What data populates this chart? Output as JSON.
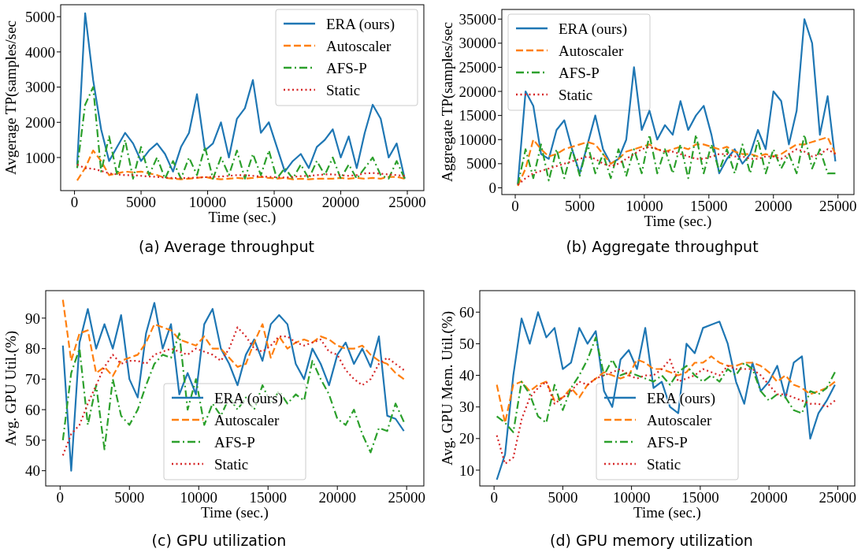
{
  "chart_data": [
    {
      "type": "line",
      "title": "(a) Average throughput",
      "xlabel": "Time (sec.)",
      "ylabel": "Avgerage TP(samples/sec",
      "xlim": [
        -1040,
        26240
      ],
      "ylim": [
        60,
        5340
      ],
      "xticks": [
        0,
        5000,
        10000,
        15000,
        20000,
        25000
      ],
      "yticks": [
        1000,
        2000,
        3000,
        4000,
        5000
      ],
      "legend": "top right",
      "grid": false,
      "x": [
        200,
        800,
        1400,
        2000,
        2600,
        3200,
        3800,
        4400,
        5000,
        5600,
        6200,
        6800,
        7400,
        8000,
        8600,
        9200,
        9800,
        10400,
        11000,
        11600,
        12200,
        12800,
        13400,
        14000,
        14600,
        15200,
        15800,
        16400,
        17000,
        17600,
        18200,
        18800,
        19400,
        20000,
        20600,
        21200,
        21800,
        22400,
        23000,
        23600,
        24200,
        24800
      ],
      "series": [
        {
          "name": "ERA (ours)",
          "color": "#1f77b4",
          "line_style": "solid",
          "values": [
            800,
            5100,
            3200,
            1800,
            900,
            1300,
            1700,
            1400,
            900,
            1200,
            1400,
            1100,
            600,
            1300,
            1700,
            2800,
            1200,
            1400,
            2000,
            1000,
            2100,
            2400,
            3200,
            1700,
            2000,
            1300,
            600,
            900,
            1100,
            700,
            1300,
            1500,
            1800,
            1000,
            1600,
            700,
            1700,
            2500,
            2100,
            1000,
            1400,
            400
          ]
        },
        {
          "name": "Autoscaler",
          "color": "#ff7f0e",
          "line_style": "dashed",
          "values": [
            350,
            700,
            1200,
            900,
            500,
            550,
            600,
            580,
            600,
            550,
            500,
            420,
            400,
            380,
            400,
            420,
            450,
            400,
            380,
            400,
            420,
            400,
            420,
            450,
            420,
            400,
            420,
            380,
            400,
            380,
            400,
            400,
            400,
            420,
            400,
            420,
            400,
            420,
            400,
            450,
            450,
            400
          ]
        },
        {
          "name": "AFS-P",
          "color": "#2ca02c",
          "line_style": "dashdot",
          "values": [
            700,
            2500,
            3000,
            600,
            1600,
            500,
            1500,
            400,
            1300,
            500,
            1000,
            400,
            900,
            400,
            1000,
            500,
            1300,
            400,
            1000,
            500,
            1200,
            400,
            1100,
            500,
            1200,
            400,
            700,
            400,
            800,
            400,
            900,
            500,
            1000,
            400,
            800,
            400,
            700,
            1000,
            500,
            400,
            900,
            400
          ]
        },
        {
          "name": "Static",
          "color": "#d62728",
          "line_style": "dotted",
          "values": [
            800,
            700,
            680,
            620,
            550,
            520,
            500,
            500,
            480,
            460,
            450,
            430,
            420,
            410,
            420,
            430,
            440,
            450,
            460,
            480,
            500,
            500,
            480,
            460,
            450,
            440,
            430,
            450,
            470,
            480,
            500,
            520,
            520,
            500,
            480,
            500,
            550,
            560,
            540,
            520,
            500,
            480
          ]
        }
      ]
    },
    {
      "type": "line",
      "title": "(b) Aggregate throughput",
      "xlabel": "Time (sec.)",
      "ylabel": "Aggregate TP(samples/sec",
      "xlim": [
        -1040,
        26240
      ],
      "ylim": [
        -1400,
        37000
      ],
      "xticks": [
        0,
        5000,
        10000,
        15000,
        20000,
        25000
      ],
      "yticks": [
        0,
        5000,
        10000,
        15000,
        20000,
        25000,
        30000,
        35000
      ],
      "legend": "top left",
      "grid": false,
      "x": [
        200,
        800,
        1400,
        2000,
        2600,
        3200,
        3800,
        4400,
        5000,
        5600,
        6200,
        6800,
        7400,
        8000,
        8600,
        9200,
        9800,
        10400,
        11000,
        11600,
        12200,
        12800,
        13400,
        14000,
        14600,
        15200,
        15800,
        16400,
        17000,
        17600,
        18200,
        18800,
        19400,
        20000,
        20600,
        21200,
        21800,
        22400,
        23000,
        23600,
        24200,
        24800
      ],
      "series": [
        {
          "name": "ERA (ours)",
          "color": "#1f77b4",
          "line_style": "solid",
          "values": [
            800,
            20000,
            17000,
            7000,
            6000,
            12000,
            14000,
            8000,
            3000,
            9000,
            15000,
            8000,
            5000,
            6000,
            10000,
            25000,
            12000,
            16000,
            10000,
            13000,
            11000,
            18000,
            12000,
            15000,
            17000,
            11000,
            3000,
            6000,
            8000,
            5000,
            7000,
            12000,
            8000,
            20000,
            18000,
            9000,
            16000,
            35000,
            30000,
            11000,
            19000,
            5500
          ]
        },
        {
          "name": "Autoscaler",
          "color": "#ff7f0e",
          "line_style": "dashed",
          "values": [
            400,
            4000,
            10000,
            8000,
            6500,
            7000,
            8000,
            8500,
            9000,
            9500,
            9000,
            7000,
            5000,
            6000,
            7500,
            8000,
            8500,
            9000,
            8000,
            7500,
            8000,
            8500,
            8000,
            9000,
            9000,
            8500,
            8000,
            8500,
            7500,
            7000,
            7000,
            6500,
            7000,
            6500,
            7000,
            8000,
            9000,
            9000,
            9500,
            10000,
            10500,
            7000
          ]
        },
        {
          "name": "AFS-P",
          "color": "#2ca02c",
          "line_style": "dashdot",
          "values": [
            600,
            8000,
            2000,
            9000,
            1500,
            8000,
            2000,
            8000,
            2500,
            9000,
            3000,
            7000,
            2000,
            8000,
            2500,
            8000,
            3000,
            11000,
            3000,
            8000,
            3000,
            9000,
            2000,
            11000,
            3000,
            9000,
            3500,
            8000,
            3000,
            9000,
            3000,
            10000,
            3000,
            8000,
            4000,
            7000,
            3000,
            11000,
            4000,
            8000,
            3000,
            3000
          ]
        },
        {
          "name": "Static",
          "color": "#d62728",
          "line_style": "dotted",
          "values": [
            600,
            2000,
            3000,
            3500,
            4000,
            4500,
            5000,
            5500,
            6000,
            6500,
            6000,
            5000,
            4500,
            5000,
            6000,
            7000,
            8000,
            8500,
            8000,
            7500,
            7500,
            7000,
            6500,
            6000,
            6000,
            6500,
            7000,
            7000,
            6500,
            6500,
            6000,
            6000,
            6500,
            6500,
            6000,
            7000,
            8000,
            7500,
            6500,
            7000,
            8000,
            7000
          ]
        }
      ]
    },
    {
      "type": "line",
      "title": "(c) GPU utilization",
      "xlabel": "Time (sec.)",
      "ylabel": "Avg. GPU Util.(%)",
      "xlim": [
        -1040,
        26240
      ],
      "ylim": [
        35,
        99
      ],
      "xticks": [
        0,
        5000,
        10000,
        15000,
        20000,
        25000
      ],
      "yticks": [
        40,
        50,
        60,
        70,
        80,
        90
      ],
      "legend": "bottom",
      "grid": false,
      "x": [
        200,
        800,
        1400,
        2000,
        2600,
        3200,
        3800,
        4400,
        5000,
        5600,
        6200,
        6800,
        7400,
        8000,
        8600,
        9200,
        9800,
        10400,
        11000,
        11600,
        12200,
        12800,
        13400,
        14000,
        14600,
        15200,
        15800,
        16400,
        17000,
        17600,
        18200,
        18800,
        19400,
        20000,
        20600,
        21200,
        21800,
        22400,
        23000,
        23600,
        24200,
        24800
      ],
      "series": [
        {
          "name": "ERA (ours)",
          "color": "#1f77b4",
          "line_style": "solid",
          "values": [
            81,
            40,
            82,
            93,
            80,
            88,
            80,
            91,
            70,
            64,
            85,
            95,
            80,
            88,
            65,
            72,
            65,
            88,
            93,
            80,
            75,
            68,
            78,
            83,
            76,
            88,
            91,
            88,
            75,
            70,
            80,
            75,
            68,
            78,
            82,
            75,
            80,
            74,
            84,
            58,
            57,
            53
          ]
        },
        {
          "name": "Autoscaler",
          "color": "#ff7f0e",
          "line_style": "dashed",
          "values": [
            96,
            76,
            85,
            86,
            72,
            74,
            71,
            76,
            77,
            78,
            82,
            88,
            87,
            86,
            83,
            82,
            81,
            84,
            80,
            80,
            77,
            74,
            75,
            82,
            88,
            77,
            84,
            80,
            82,
            83,
            82,
            84,
            83,
            81,
            80,
            80,
            81,
            78,
            76,
            75,
            72,
            70
          ]
        },
        {
          "name": "AFS-P",
          "color": "#2ca02c",
          "line_style": "dashdot",
          "values": [
            50,
            72,
            80,
            55,
            68,
            47,
            70,
            58,
            55,
            60,
            68,
            75,
            78,
            77,
            85,
            60,
            70,
            55,
            62,
            58,
            64,
            60,
            64,
            60,
            68,
            62,
            66,
            62,
            65,
            63,
            76,
            70,
            65,
            57,
            55,
            60,
            52,
            46,
            54,
            53,
            62,
            56
          ]
        },
        {
          "name": "Static",
          "color": "#d62728",
          "line_style": "dotted",
          "values": [
            45,
            52,
            55,
            62,
            68,
            74,
            78,
            75,
            76,
            76,
            75,
            78,
            79,
            80,
            79,
            78,
            80,
            79,
            78,
            76,
            80,
            87,
            84,
            80,
            79,
            81,
            84,
            84,
            82,
            81,
            82,
            83,
            79,
            78,
            73,
            70,
            68,
            70,
            75,
            77,
            75,
            73
          ]
        }
      ]
    },
    {
      "type": "line",
      "title": "(d) GPU memory utilization",
      "xlabel": "Time (sec.)",
      "ylabel": "Avg. GPU Mem. Util.(%)",
      "xlim": [
        -1040,
        26240
      ],
      "ylim": [
        5,
        66.8
      ],
      "xticks": [
        0,
        5000,
        10000,
        15000,
        20000,
        25000
      ],
      "yticks": [
        10,
        20,
        30,
        40,
        50,
        60
      ],
      "legend": "bottom",
      "grid": false,
      "x": [
        200,
        800,
        1400,
        2000,
        2600,
        3200,
        3800,
        4400,
        5000,
        5600,
        6200,
        6800,
        7400,
        8000,
        8600,
        9200,
        9800,
        10400,
        11000,
        11600,
        12200,
        12800,
        13400,
        14000,
        14600,
        15200,
        15800,
        16400,
        17000,
        17600,
        18200,
        18800,
        19400,
        20000,
        20600,
        21200,
        21800,
        22400,
        23000,
        23600,
        24200,
        24800
      ],
      "series": [
        {
          "name": "ERA (ours)",
          "color": "#1f77b4",
          "line_style": "solid",
          "values": [
            7,
            15,
            40,
            58,
            50,
            60,
            52,
            55,
            42,
            44,
            55,
            50,
            54,
            35,
            30,
            45,
            48,
            42,
            55,
            36,
            38,
            30,
            28,
            50,
            47,
            55,
            56,
            57,
            50,
            38,
            31,
            44,
            35,
            38,
            43,
            33,
            44,
            46,
            20,
            28,
            32,
            37
          ]
        },
        {
          "name": "Autoscaler",
          "color": "#ff7f0e",
          "line_style": "dashed",
          "values": [
            37,
            25,
            37,
            38,
            35,
            37,
            38,
            32,
            33,
            36,
            33,
            37,
            39,
            41,
            40,
            39,
            40,
            45,
            44,
            42,
            42,
            41,
            40,
            41,
            44,
            44,
            46,
            44,
            43,
            43,
            44,
            44,
            43,
            41,
            38,
            40,
            37,
            36,
            34,
            35,
            36,
            38
          ]
        },
        {
          "name": "AFS-P",
          "color": "#2ca02c",
          "line_style": "dashdot",
          "values": [
            27,
            25,
            22,
            38,
            34,
            27,
            25,
            37,
            29,
            36,
            40,
            45,
            52,
            40,
            45,
            40,
            41,
            40,
            39,
            38,
            40,
            37,
            41,
            43,
            40,
            38,
            40,
            38,
            42,
            40,
            44,
            42,
            35,
            32,
            34,
            33,
            29,
            28,
            35,
            34,
            36,
            41
          ]
        },
        {
          "name": "Static",
          "color": "#d62728",
          "line_style": "dotted",
          "values": [
            21,
            12,
            14,
            26,
            33,
            36,
            38,
            31,
            33,
            35,
            38,
            37,
            39,
            40,
            41,
            42,
            40,
            39,
            40,
            40,
            42,
            45,
            38,
            39,
            40,
            42,
            41,
            40,
            43,
            42,
            42,
            42,
            40,
            37,
            34,
            34,
            33,
            32,
            31,
            31,
            30,
            32
          ]
        }
      ]
    }
  ]
}
